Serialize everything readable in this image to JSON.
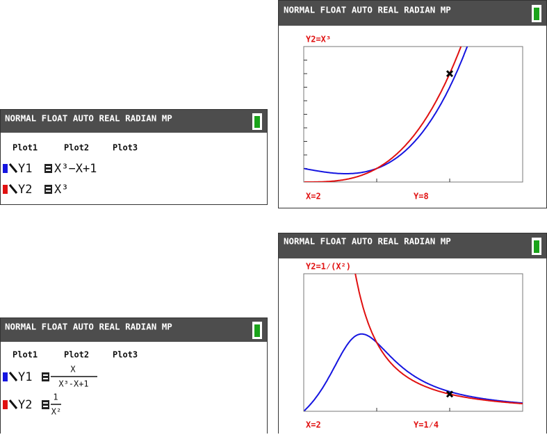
{
  "screens": [
    {
      "status": "NORMAL FLOAT AUTO REAL RADIAN MP",
      "plots": [
        "Plot1",
        "Plot2",
        "Plot3"
      ],
      "equations": [
        {
          "name": "Y1",
          "expr": "X³−X+1"
        },
        {
          "name": "Y2",
          "expr": "X³"
        }
      ]
    },
    {
      "status": "NORMAL FLOAT AUTO REAL RADIAN MP",
      "trace": "Y2=X³",
      "x_readout": "X=2",
      "y_readout": "Y=8"
    },
    {
      "status": "NORMAL FLOAT AUTO REAL RADIAN MP",
      "plots": [
        "Plot1",
        "Plot2",
        "Plot3"
      ],
      "equations": [
        {
          "name": "Y1",
          "numerator": "X",
          "denominator": "X³-X+1"
        },
        {
          "name": "Y2",
          "numerator": "1",
          "denominator": "X²"
        }
      ]
    },
    {
      "status": "NORMAL FLOAT AUTO REAL RADIAN MP",
      "trace": "Y2=1⁄(X²)",
      "x_readout": "X=2",
      "y_readout": "Y=1⁄4"
    }
  ]
}
